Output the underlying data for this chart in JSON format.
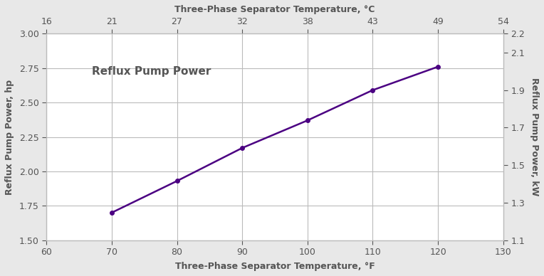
{
  "x_f": [
    70,
    80,
    90,
    100,
    110,
    120
  ],
  "y_hp": [
    1.7,
    1.93,
    2.17,
    2.37,
    2.59,
    2.76
  ],
  "line_color": "#4B0082",
  "marker": "o",
  "marker_size": 4,
  "line_width": 1.8,
  "title_top": "Three-Phase Separator Temperature, °C",
  "xlabel_bottom": "Three-Phase Separator Temperature, °F",
  "ylabel_left": "Reflux Pump Power, hp",
  "ylabel_right": "Reflux Pump Power, kW",
  "annotation": "Reflux Pump Power",
  "xlim_f": [
    60,
    130
  ],
  "ylim_hp": [
    1.5,
    3.0
  ],
  "ylim_kw": [
    1.1,
    2.2
  ],
  "xticks_f": [
    60,
    70,
    80,
    90,
    100,
    110,
    120,
    130
  ],
  "xticks_c": [
    16,
    21,
    27,
    32,
    38,
    43,
    49,
    54
  ],
  "yticks_hp": [
    1.5,
    1.75,
    2.0,
    2.25,
    2.5,
    2.75,
    3.0
  ],
  "yticks_kw": [
    1.1,
    1.3,
    1.5,
    1.7,
    1.9,
    2.1,
    2.2
  ],
  "background_color": "#e8e8e8",
  "plot_bg_color": "#ffffff",
  "grid_color": "#bbbbbb",
  "label_color": "#555555",
  "annotation_fontsize": 11,
  "axis_label_fontsize": 9,
  "tick_fontsize": 9,
  "title_fontsize": 9
}
